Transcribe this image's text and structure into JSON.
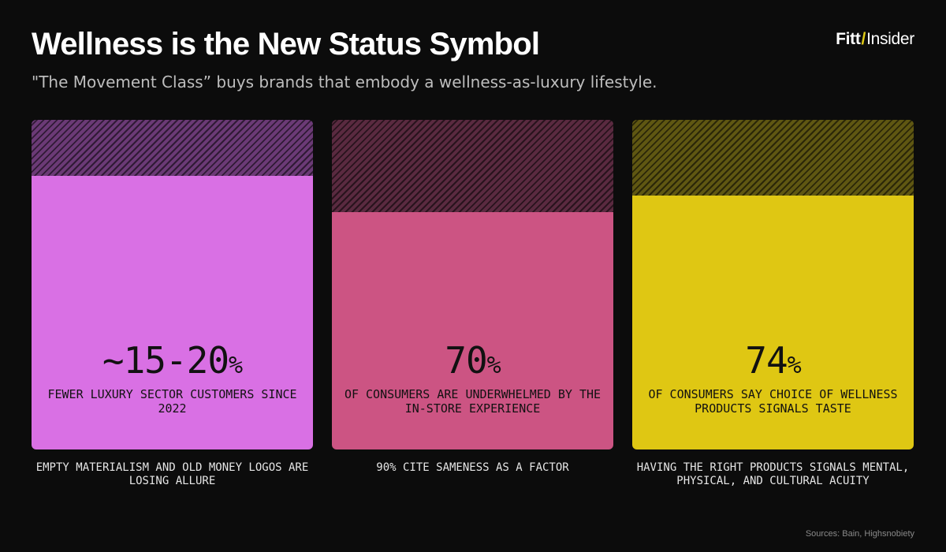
{
  "header": {
    "title": "Wellness is the New Status Symbol",
    "subtitle": "\"The Movement Class” buys brands that embody a wellness-as-luxury lifestyle.",
    "logo_part1": "Fitt",
    "logo_slash": "/",
    "logo_part2": "Insider"
  },
  "chart_data": {
    "type": "bar",
    "categories": [
      "Luxury sector customers",
      "Consumers underwhelmed",
      "Wellness signals taste"
    ],
    "values": [
      17.5,
      70,
      74
    ],
    "ylim": [
      0,
      100
    ],
    "value_range_first": [
      15,
      20
    ],
    "panels": [
      {
        "stat_main": "~15-20",
        "stat_unit": "%",
        "description": "FEWER LUXURY SECTOR CUSTOMERS SINCE 2022",
        "footnote": "EMPTY MATERIALISM AND OLD MONEY LOGOS ARE LOSING ALLURE",
        "color": "#d970e4",
        "hatch_color": "#6b3a76",
        "fill_fraction": 0.83
      },
      {
        "stat_main": "70",
        "stat_unit": "%",
        "description": "OF CONSUMERS ARE UNDERWHELMED BY THE IN-STORE EXPERIENCE",
        "footnote": "90% CITE SAMENESS AS A FACTOR",
        "color": "#cc5483",
        "hatch_color": "#5a2a40",
        "fill_fraction": 0.72
      },
      {
        "stat_main": "74",
        "stat_unit": "%",
        "description": "OF CONSUMERS SAY CHOICE OF WELLNESS PRODUCTS SIGNALS TASTE",
        "footnote": "HAVING THE RIGHT PRODUCTS SIGNALS MENTAL, PHYSICAL, AND CULTURAL ACUITY",
        "color": "#dfc713",
        "hatch_color": "#5f5712",
        "fill_fraction": 0.77
      }
    ]
  },
  "sources": "Sources:  Bain, Highsnobiety"
}
